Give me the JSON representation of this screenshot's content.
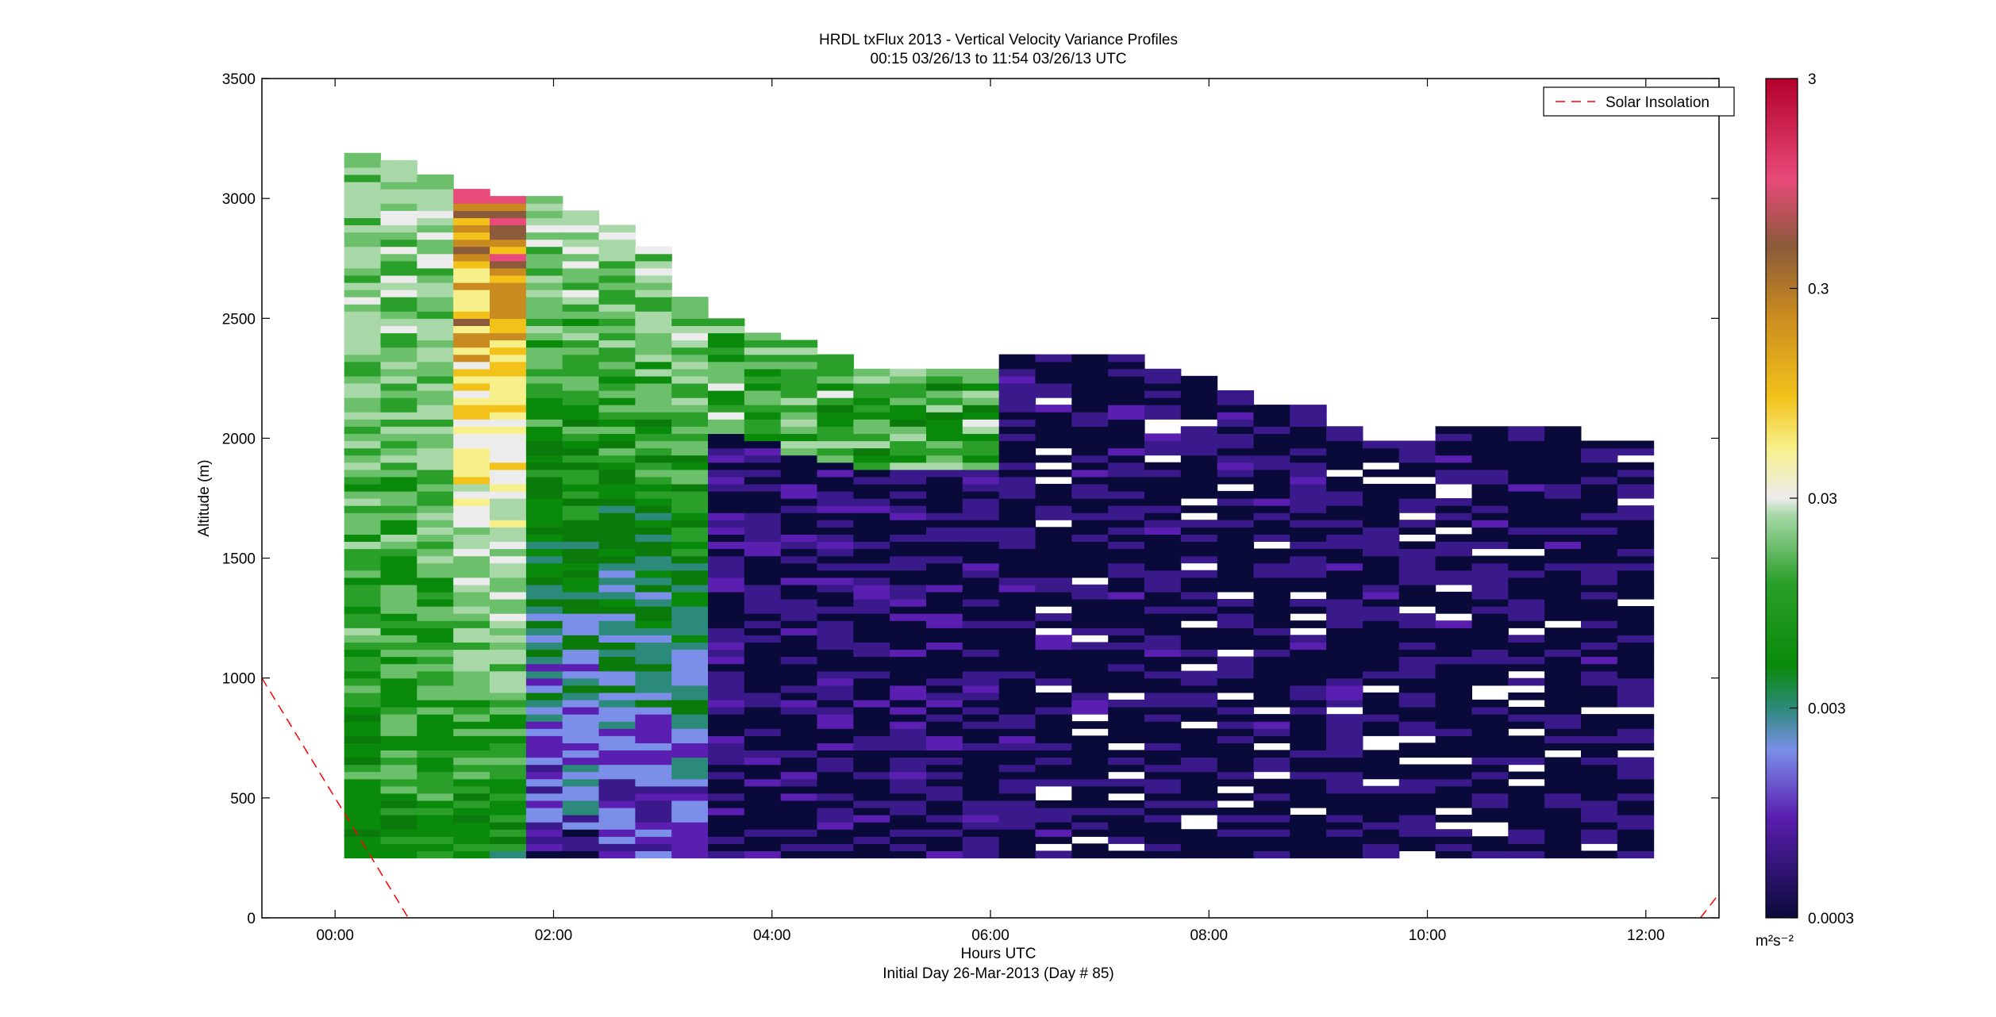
{
  "figure": {
    "title_line1": "HRDL txFlux 2013 - Vertical Velocity Variance Profiles",
    "title_line2": "00:15 03/26/13 to 11:54 03/26/13  UTC",
    "footer": "Initial Day 26-Mar-2013 (Day # 85)"
  },
  "chart_data": {
    "type": "heatmap",
    "title": "HRDL txFlux 2013 - Vertical Velocity Variance Profiles",
    "subtitle": "00:15 03/26/13 to 11:54 03/26/13  UTC",
    "xlabel": "Hours UTC",
    "ylabel": "Altitude (m)",
    "xlim": [
      -0.67,
      12.67
    ],
    "ylim": [
      0,
      3500
    ],
    "x_tick_values": [
      0,
      2,
      4,
      6,
      8,
      10,
      12
    ],
    "x_tick_labels": [
      "00:00",
      "02:00",
      "04:00",
      "06:00",
      "08:00",
      "10:00",
      "12:00"
    ],
    "y_tick_values": [
      0,
      500,
      1000,
      1500,
      2000,
      2500,
      3000,
      3500
    ],
    "y_tick_labels": [
      "0",
      "500",
      "1000",
      "1500",
      "2000",
      "2500",
      "3000",
      "3500"
    ],
    "grid": false,
    "legend": {
      "entries": [
        "Solar Insolation"
      ],
      "placement": "top-right"
    },
    "colorbar": {
      "scale": "log",
      "range": [
        0.0003,
        3
      ],
      "tick_values": [
        0.0003,
        0.003,
        0.03,
        0.3,
        3
      ],
      "tick_labels": [
        "0.0003",
        "0.003",
        "0.03",
        "0.3",
        "3"
      ],
      "units": "m²s⁻²"
    },
    "profiles": {
      "start_hour": 0.25,
      "step_hours": 0.333,
      "count": 36,
      "bottom_altitude_m": 250,
      "bin_altitude_m": 30,
      "top_altitudes_m": [
        3200,
        3150,
        3100,
        3050,
        3000,
        3000,
        2950,
        2900,
        2800,
        2600,
        2500,
        2450,
        2400,
        2350,
        2300,
        2300,
        2300,
        2300,
        2350,
        2350,
        2350,
        2350,
        2300,
        2250,
        2200,
        2150,
        2150,
        2050,
        2000,
        2000,
        2050,
        2050,
        2050,
        2050,
        2000,
        2000
      ]
    },
    "solar_insolation": {
      "style": "dashed",
      "color": "#ff0000",
      "segments": [
        {
          "x": [
            -0.67,
            0.67
          ],
          "y": [
            1000,
            0
          ]
        },
        {
          "x": [
            12.5,
            12.67
          ],
          "y": [
            0,
            100
          ]
        }
      ]
    }
  }
}
